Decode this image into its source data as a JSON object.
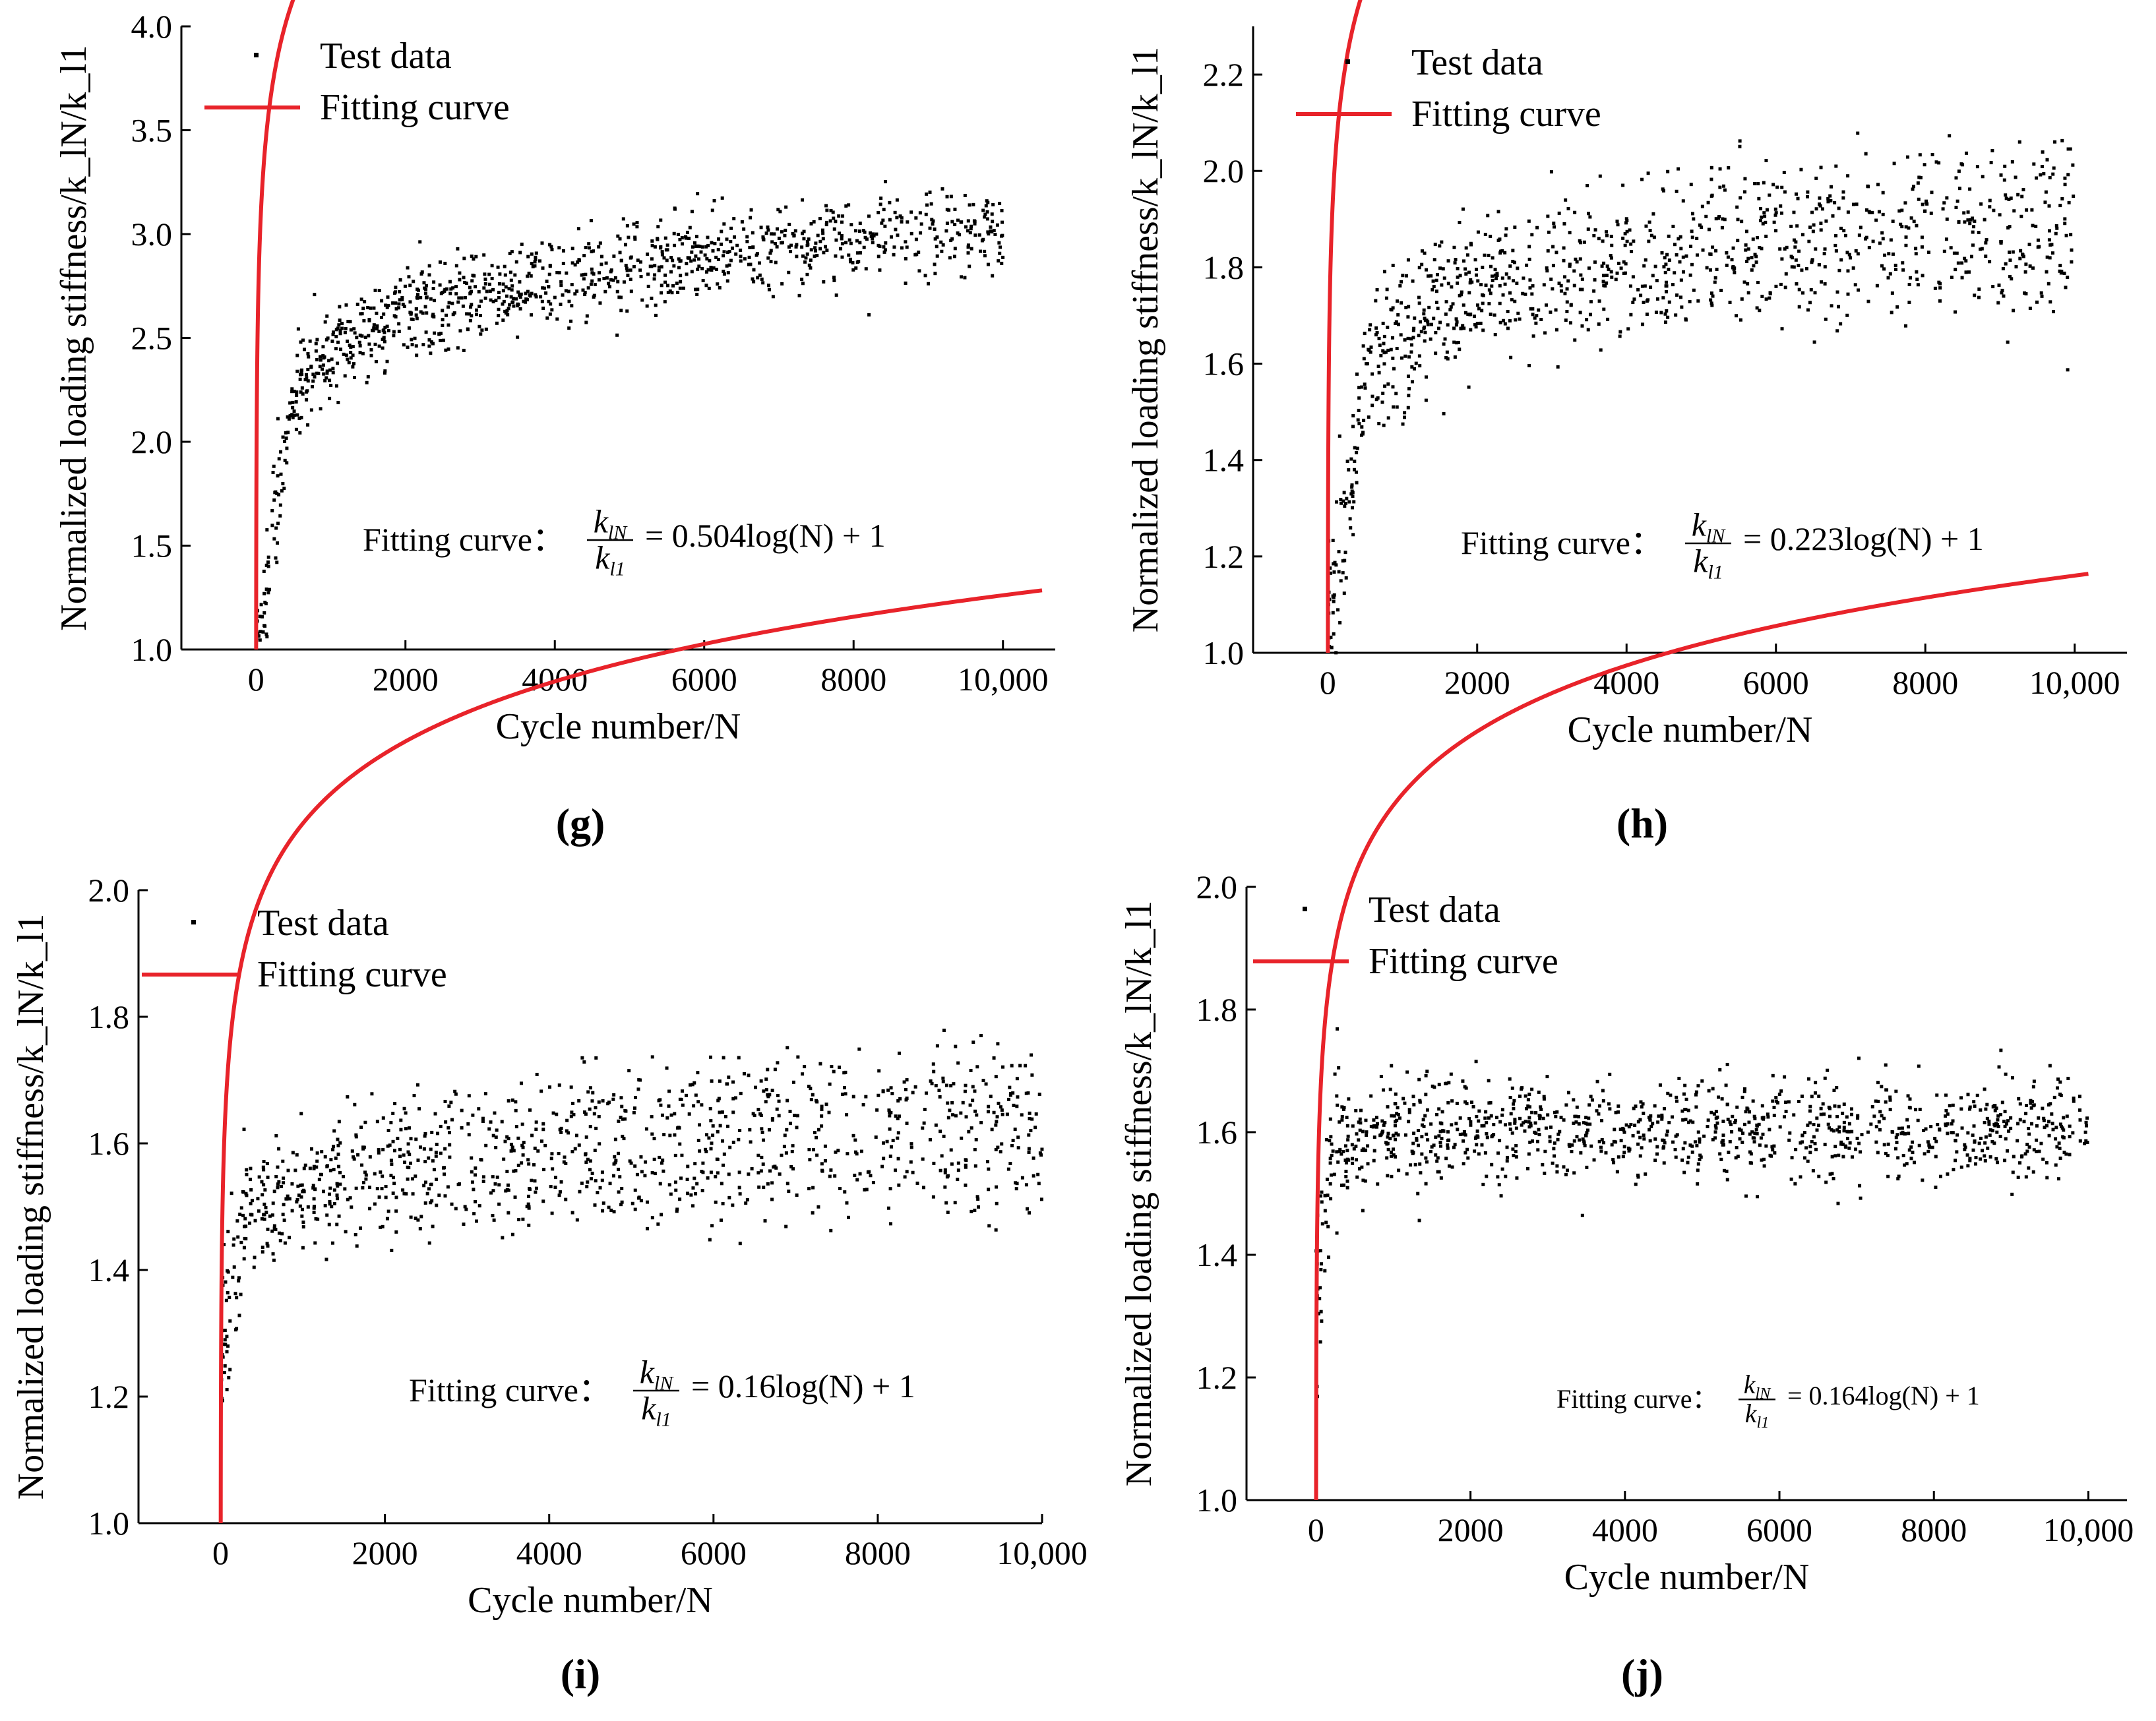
{
  "figure": {
    "legend": {
      "test_data": "Test data",
      "fitting_curve": "Fitting curve"
    },
    "colors": {
      "fit": "#e8232a",
      "points": "#000000",
      "axis": "#000000"
    },
    "equation_label": "Fitting curve：",
    "equation_parts": {
      "num": "k",
      "num_sub": "lN",
      "den": "k",
      "den_sub": "l1",
      "eq_suffix": "log(N) + 1"
    }
  },
  "chart_data": [
    {
      "type": "scatter",
      "panel": "(g)",
      "title": "",
      "xlabel": "Cycle number/N",
      "ylabel": "Normalized loading stiffness/k_lN/k_l1",
      "xlim": [
        -1000,
        10700
      ],
      "ylim": [
        1.0,
        4.0
      ],
      "xticks": [
        0,
        2000,
        4000,
        6000,
        8000,
        10000
      ],
      "xtick_labels": [
        "0",
        "2000",
        "4000",
        "6000",
        "8000",
        "10,000"
      ],
      "yticks": [
        1.0,
        1.5,
        2.0,
        2.5,
        3.0,
        3.5,
        4.0
      ],
      "ytick_labels": [
        "1.0",
        "1.5",
        "2.0",
        "2.5",
        "3.0",
        "3.5",
        "4.0"
      ],
      "fit": {
        "coef": 0.504,
        "coef_label": "0.504"
      },
      "series": [
        {
          "name": "Test data",
          "trends": [
            {
              "x": [
                0,
                500,
                1000,
                2000,
                4000,
                6000,
                8000,
                10000
              ],
              "y": [
                1.0,
                2.3,
                2.5,
                2.68,
                2.85,
                2.95,
                3.02,
                3.08
              ]
            },
            {
              "x": [
                0,
                500,
                1000,
                2000,
                4000,
                6000,
                8000,
                10000
              ],
              "y": [
                1.0,
                2.2,
                2.4,
                2.55,
                2.72,
                2.85,
                2.92,
                2.98
              ]
            }
          ],
          "spread": 0.09,
          "count": 1100
        },
        {
          "name": "Fitting curve",
          "equation": "k_lN/k_l1 = 0.504log(N)+1"
        }
      ]
    },
    {
      "type": "scatter",
      "panel": "(h)",
      "title": "",
      "xlabel": "Cycle number/N",
      "ylabel": "Normalized loading stiffness/k_lN/k_l1",
      "xlim": [
        -1000,
        10700
      ],
      "ylim": [
        1.0,
        2.3
      ],
      "xticks": [
        0,
        2000,
        4000,
        6000,
        8000,
        10000
      ],
      "xtick_labels": [
        "0",
        "2000",
        "4000",
        "6000",
        "8000",
        "10,000"
      ],
      "yticks": [
        1.0,
        1.2,
        1.4,
        1.6,
        1.8,
        2.0,
        2.2
      ],
      "ytick_labels": [
        "1.0",
        "1.2",
        "1.4",
        "1.6",
        "1.8",
        "2.0",
        "2.2"
      ],
      "fit": {
        "coef": 0.223,
        "coef_label": "0.223"
      },
      "series": [
        {
          "name": "Test data",
          "trends": [
            {
              "x": [
                0,
                500,
                1000,
                2000,
                4000,
                6000,
                8000,
                10000
              ],
              "y": [
                1.0,
                1.62,
                1.72,
                1.8,
                1.87,
                1.92,
                1.95,
                1.97
              ]
            },
            {
              "x": [
                0,
                500,
                1000,
                2000,
                4000,
                6000,
                8000,
                10000
              ],
              "y": [
                1.0,
                1.52,
                1.6,
                1.7,
                1.77,
                1.79,
                1.8,
                1.8
              ]
            }
          ],
          "spread": 0.06,
          "count": 1100
        },
        {
          "name": "Fitting curve",
          "equation": "k_lN/k_l1 = 0.223log(N)+1"
        }
      ]
    },
    {
      "type": "scatter",
      "panel": "(i)",
      "title": "",
      "xlabel": "Cycle number/N",
      "ylabel": "Normalized loading stiffness/k_lN/k_l1",
      "xlim": [
        -1000,
        10000
      ],
      "ylim": [
        1.0,
        2.0
      ],
      "xticks": [
        0,
        2000,
        4000,
        6000,
        8000,
        10000
      ],
      "xtick_labels": [
        "0",
        "2000",
        "4000",
        "6000",
        "8000",
        "10,000"
      ],
      "yticks": [
        1.0,
        1.2,
        1.4,
        1.6,
        1.8,
        2.0
      ],
      "ytick_labels": [
        "1.0",
        "1.2",
        "1.4",
        "1.6",
        "1.8",
        "2.0"
      ],
      "fit": {
        "coef": 0.16,
        "coef_label": "0.16"
      },
      "series": [
        {
          "name": "Test data",
          "trends": [
            {
              "x": [
                0,
                300,
                1000,
                2000,
                4000,
                6000,
                8000,
                10000
              ],
              "y": [
                1.25,
                1.52,
                1.56,
                1.6,
                1.64,
                1.66,
                1.67,
                1.68
              ]
            },
            {
              "x": [
                0,
                300,
                1000,
                2000,
                4000,
                6000,
                8000,
                10000
              ],
              "y": [
                1.25,
                1.46,
                1.5,
                1.52,
                1.54,
                1.55,
                1.55,
                1.56
              ]
            }
          ],
          "spread": 0.04,
          "count": 1100
        },
        {
          "name": "Fitting curve",
          "equation": "k_lN/k_l1 = 0.16log(N)+1"
        }
      ]
    },
    {
      "type": "scatter",
      "panel": "(j)",
      "title": "",
      "xlabel": "Cycle number/N",
      "ylabel": "Normalized loading stiffness/k_lN/k_l1",
      "xlim": [
        -900,
        10500
      ],
      "ylim": [
        1.0,
        2.0
      ],
      "xticks": [
        0,
        2000,
        4000,
        6000,
        8000,
        10000
      ],
      "xtick_labels": [
        "0",
        "2000",
        "4000",
        "6000",
        "8000",
        "10,000"
      ],
      "yticks": [
        1.0,
        1.2,
        1.4,
        1.6,
        1.8,
        2.0
      ],
      "ytick_labels": [
        "1.0",
        "1.2",
        "1.4",
        "1.6",
        "1.8",
        "2.0"
      ],
      "fit": {
        "coef": 0.164,
        "coef_label": "0.164"
      },
      "series": [
        {
          "name": "Test data",
          "trends": [
            {
              "x": [
                0,
                200,
                1000,
                2000,
                4000,
                6000,
                8000,
                10000
              ],
              "y": [
                1.3,
                1.6,
                1.63,
                1.63,
                1.62,
                1.62,
                1.62,
                1.62
              ]
            },
            {
              "x": [
                0,
                200,
                1000,
                2000,
                4000,
                6000,
                8000,
                10000
              ],
              "y": [
                1.3,
                1.56,
                1.58,
                1.59,
                1.59,
                1.59,
                1.58,
                1.58
              ]
            }
          ],
          "spread": 0.04,
          "count": 1100
        },
        {
          "name": "Fitting curve",
          "equation": "k_lN/k_l1 = 0.164log(N)+1"
        }
      ]
    }
  ]
}
